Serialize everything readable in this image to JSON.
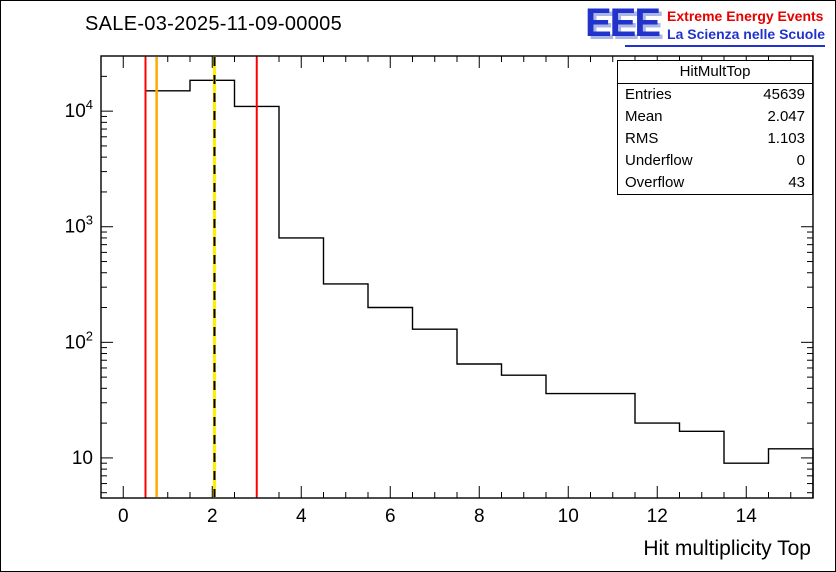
{
  "header": {
    "title": "SALE-03-2025-11-09-00005",
    "logo": {
      "text": "EEE",
      "line1": "Extreme Energy Events",
      "line2": "La Scienza nelle Scuole",
      "colors": {
        "eee": "#2233cc",
        "line1": "#e60000",
        "line2": "#2233cc",
        "underline": "#2233cc"
      }
    }
  },
  "stats": {
    "title": "HitMultTop",
    "rows": [
      {
        "label": "Entries",
        "value": "45639"
      },
      {
        "label": "Mean",
        "value": "2.047"
      },
      {
        "label": "RMS",
        "value": "1.103"
      },
      {
        "label": "Underflow",
        "value": "0"
      },
      {
        "label": "Overflow",
        "value": "43"
      }
    ]
  },
  "chart_data": {
    "type": "bar",
    "subtype": "step-histogram",
    "title": "SALE-03-2025-11-09-00005",
    "xlabel": "Hit multiplicity Top",
    "ylabel": "",
    "ylog": true,
    "xlim": [
      -0.5,
      15.5
    ],
    "ylim": [
      4.5,
      30000
    ],
    "bin_edges": [
      0.5,
      1.5,
      2.5,
      3.5,
      4.5,
      5.5,
      6.5,
      7.5,
      8.5,
      9.5,
      10.5,
      11.5,
      12.5,
      13.5,
      14.5,
      15.5
    ],
    "counts": [
      15000,
      18500,
      11000,
      800,
      320,
      200,
      130,
      65,
      52,
      36,
      36,
      20,
      17,
      9,
      12
    ],
    "xticks": [
      0,
      2,
      4,
      6,
      8,
      10,
      12,
      14
    ],
    "yticks": [
      10,
      100,
      1000,
      10000
    ],
    "grid": false,
    "legend": "none",
    "line_color": "#000000",
    "marker_lines": [
      {
        "x": 0.5,
        "color": "#ff0000",
        "style": "solid",
        "width": 2
      },
      {
        "x": 0.75,
        "color": "#ffaa00",
        "style": "solid",
        "width": 2.5
      },
      {
        "x": 2.05,
        "color": "#ffee00",
        "style": "solid",
        "width": 3
      },
      {
        "x": 2.05,
        "color": "#000000",
        "style": "dashed",
        "width": 2
      },
      {
        "x": 3.0,
        "color": "#ff0000",
        "style": "solid",
        "width": 2
      }
    ]
  }
}
